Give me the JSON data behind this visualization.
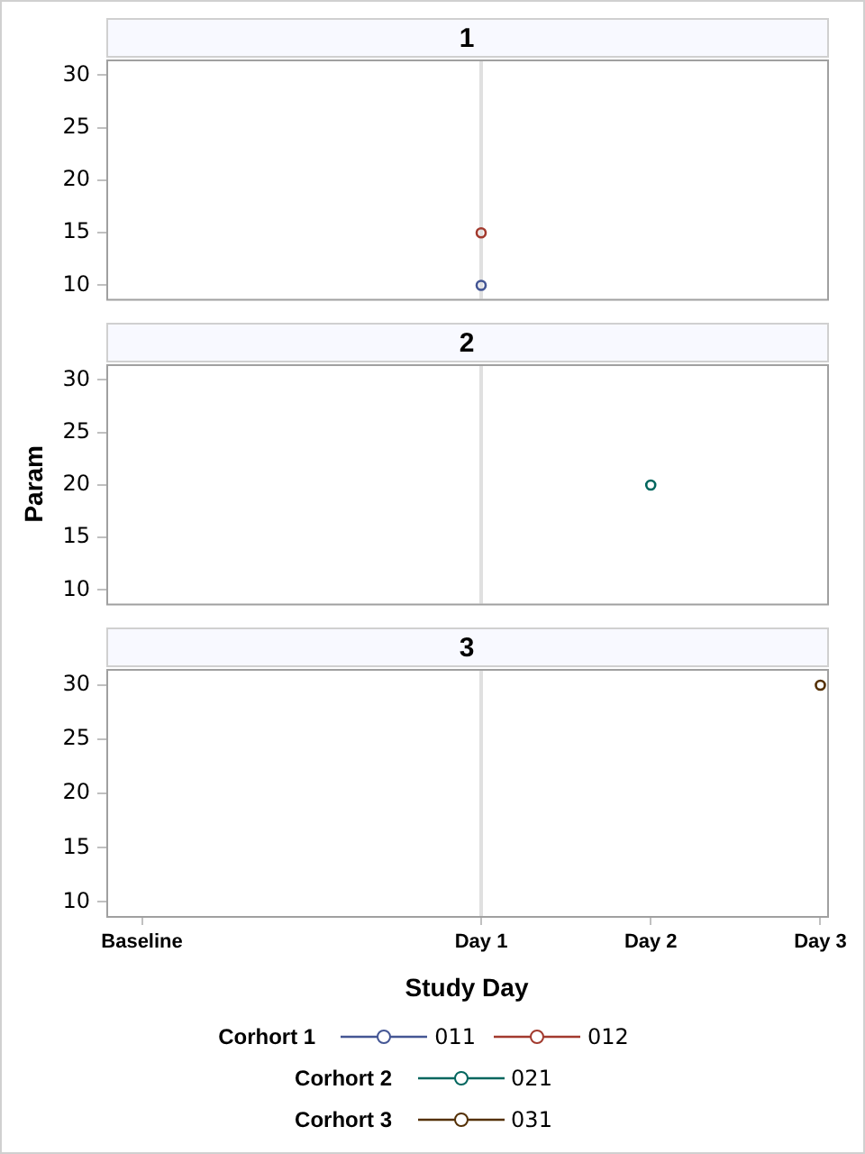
{
  "chart_data": [
    {
      "type": "line",
      "title": "1",
      "legend": "bottom",
      "legend_title": "Corhort 1",
      "marker": "circle",
      "line_style": "solid",
      "grid": false,
      "tick_labels": "y",
      "categories": [
        "Baseline",
        null,
        "Day 1",
        "Day 2",
        "Day 3"
      ],
      "ylim": [
        8.7,
        31.5
      ],
      "yticks": [
        10,
        15,
        20,
        25,
        30
      ],
      "ref_lines": [
        {
          "axis": "x",
          "value": "Day 1",
          "color": "#e0e0e0"
        }
      ],
      "series": [
        {
          "name": "011",
          "color": "#445694",
          "values": [
            null,
            null,
            10,
            null,
            null
          ]
        },
        {
          "name": "012",
          "color": "#a23a2e",
          "values": [
            null,
            null,
            15,
            null,
            null
          ]
        }
      ]
    },
    {
      "type": "line",
      "title": "2",
      "ylabel": "Param",
      "legend": "bottom",
      "legend_title": "Corhort 2",
      "marker": "circle",
      "line_style": "solid",
      "grid": false,
      "tick_labels": "y",
      "categories": [
        "Baseline",
        null,
        "Day 1",
        "Day 2",
        "Day 3"
      ],
      "ylim": [
        8.7,
        31.5
      ],
      "yticks": [
        10,
        15,
        20,
        25,
        30
      ],
      "ref_lines": [
        {
          "axis": "x",
          "value": "Day 1",
          "color": "#e0e0e0"
        }
      ],
      "series": [
        {
          "name": "021",
          "color": "#01665e",
          "values": [
            null,
            null,
            null,
            20,
            null
          ]
        }
      ]
    },
    {
      "type": "line",
      "title": "3",
      "xlabel": "Study Day",
      "legend": "bottom",
      "legend_title": "Corhort 3",
      "marker": "circle",
      "line_style": "solid",
      "grid": false,
      "categories": [
        "Baseline",
        null,
        "Day 1",
        "Day 2",
        "Day 3"
      ],
      "ylim": [
        8.7,
        31.5
      ],
      "yticks": [
        10,
        15,
        20,
        25,
        30
      ],
      "ref_lines": [
        {
          "axis": "x",
          "value": "Day 1",
          "color": "#e0e0e0"
        }
      ],
      "series": [
        {
          "name": "031",
          "color": "#543005",
          "values": [
            null,
            null,
            null,
            null,
            30
          ]
        }
      ]
    }
  ]
}
